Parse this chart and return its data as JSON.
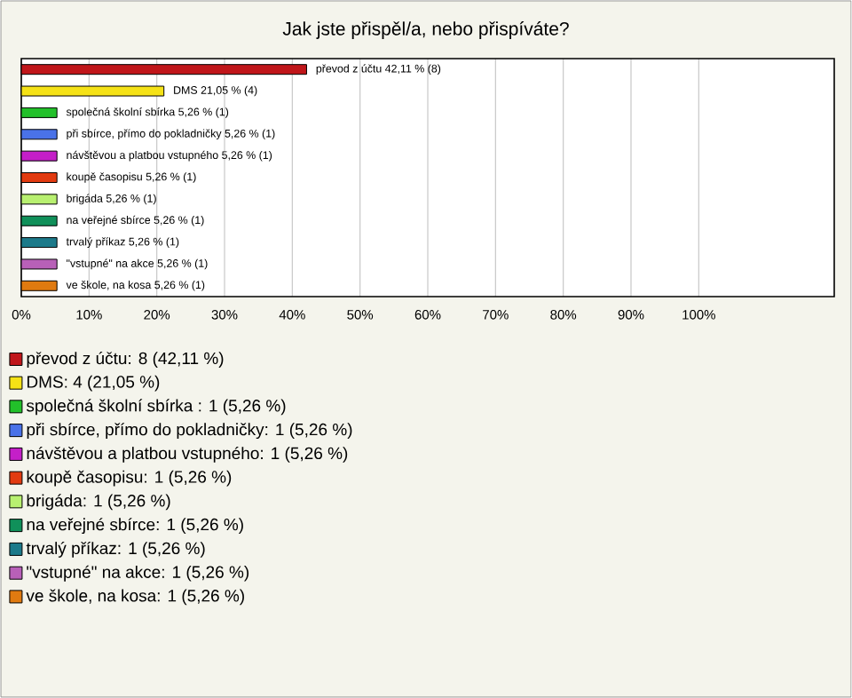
{
  "chart_data": {
    "type": "bar",
    "orientation": "horizontal",
    "title": "Jak jste přispěl/a, nebo přispíváte?",
    "categories": [
      null,
      null,
      null,
      null,
      null,
      null,
      null,
      null,
      null,
      null,
      null
    ],
    "series": [
      {
        "name": "převod z účtu: 8 (42,11 %)",
        "color": "#c0161a",
        "values": [
          42.11,
          null,
          null,
          null,
          null,
          null,
          null,
          null,
          null,
          null,
          null
        ],
        "value_labels": [
          "převod z účtu 42,11 % (8)",
          null,
          null,
          null,
          null,
          null,
          null,
          null,
          null,
          null,
          null
        ]
      },
      {
        "name": "DMS: 4 (21,05 %)",
        "color": "#f5e216",
        "values": [
          null,
          21.05,
          null,
          null,
          null,
          null,
          null,
          null,
          null,
          null,
          null
        ],
        "value_labels": [
          null,
          "DMS 21,05 % (4)",
          null,
          null,
          null,
          null,
          null,
          null,
          null,
          null,
          null
        ]
      },
      {
        "name": "společná školní sbírka : 1 (5,26 %)",
        "color": "#22c02a",
        "values": [
          null,
          null,
          5.26,
          null,
          null,
          null,
          null,
          null,
          null,
          null,
          null
        ],
        "value_labels": [
          null,
          null,
          "společná školní sbírka  5,26 % (1)",
          null,
          null,
          null,
          null,
          null,
          null,
          null,
          null
        ]
      },
      {
        "name": "při sbírce, přímo do pokladničky: 1 (5,26 %)",
        "color": "#4a72e8",
        "values": [
          null,
          null,
          null,
          5.26,
          null,
          null,
          null,
          null,
          null,
          null,
          null
        ],
        "value_labels": [
          null,
          null,
          null,
          "při sbírce, přímo do pokladničky 5,26 % (1)",
          null,
          null,
          null,
          null,
          null,
          null,
          null
        ]
      },
      {
        "name": "návštěvou a platbou vstupného: 1 (5,26 %)",
        "color": "#c41fc8",
        "values": [
          null,
          null,
          null,
          null,
          5.26,
          null,
          null,
          null,
          null,
          null,
          null
        ],
        "value_labels": [
          null,
          null,
          null,
          null,
          "návštěvou a platbou vstupného 5,26 % (1)",
          null,
          null,
          null,
          null,
          null,
          null
        ]
      },
      {
        "name": "koupě časopisu: 1 (5,26 %)",
        "color": "#e23a10",
        "values": [
          null,
          null,
          null,
          null,
          null,
          5.26,
          null,
          null,
          null,
          null,
          null
        ],
        "value_labels": [
          null,
          null,
          null,
          null,
          null,
          "koupě časopisu 5,26 % (1)",
          null,
          null,
          null,
          null,
          null
        ]
      },
      {
        "name": "brigáda: 1 (5,26 %)",
        "color": "#b8f070",
        "values": [
          null,
          null,
          null,
          null,
          null,
          null,
          5.26,
          null,
          null,
          null,
          null
        ],
        "value_labels": [
          null,
          null,
          null,
          null,
          null,
          null,
          "brigáda 5,26 % (1)",
          null,
          null,
          null,
          null
        ]
      },
      {
        "name": "na veřejné sbírce: 1 (5,26 %)",
        "color": "#10905a",
        "values": [
          null,
          null,
          null,
          null,
          null,
          null,
          null,
          5.26,
          null,
          null,
          null
        ],
        "value_labels": [
          null,
          null,
          null,
          null,
          null,
          null,
          null,
          "na veřejné sbírce 5,26 % (1)",
          null,
          null,
          null
        ]
      },
      {
        "name": "trvalý příkaz: 1 (5,26 %)",
        "color": "#1c7a8a",
        "values": [
          null,
          null,
          null,
          null,
          null,
          null,
          null,
          null,
          5.26,
          null,
          null
        ],
        "value_labels": [
          null,
          null,
          null,
          null,
          null,
          null,
          null,
          null,
          "trvalý příkaz 5,26 % (1)",
          null,
          null
        ]
      },
      {
        "name": "\"vstupné\" na akce: 1 (5,26 %)",
        "color": "#b860b8",
        "values": [
          null,
          null,
          null,
          null,
          null,
          null,
          null,
          null,
          null,
          5.26,
          null
        ],
        "value_labels": [
          null,
          null,
          null,
          null,
          null,
          null,
          null,
          null,
          null,
          "\"vstupné\" na akce 5,26 % (1)",
          null
        ]
      },
      {
        "name": "ve škole, na kosa: 1 (5,26 %)",
        "color": "#e07a10",
        "values": [
          null,
          null,
          null,
          null,
          null,
          null,
          null,
          null,
          null,
          null,
          5.26
        ],
        "value_labels": [
          null,
          null,
          null,
          null,
          null,
          null,
          null,
          null,
          null,
          null,
          "ve škole, na kosa 5,26 % (1)"
        ]
      }
    ],
    "xlim": [
      0,
      120
    ],
    "xticks": [
      {
        "value": 0,
        "label": "0%"
      },
      {
        "value": 10,
        "label": "10%"
      },
      {
        "value": 20,
        "label": "20%"
      },
      {
        "value": 30,
        "label": "30%"
      },
      {
        "value": 40,
        "label": "40%"
      },
      {
        "value": 50,
        "label": "50%"
      },
      {
        "value": 60,
        "label": "60%"
      },
      {
        "value": 70,
        "label": "70%"
      },
      {
        "value": 80,
        "label": "80%"
      },
      {
        "value": 90,
        "label": "90%"
      },
      {
        "value": 100,
        "label": "100%"
      }
    ],
    "grid": "x",
    "tick_labels": "x",
    "legend": "bottom"
  }
}
